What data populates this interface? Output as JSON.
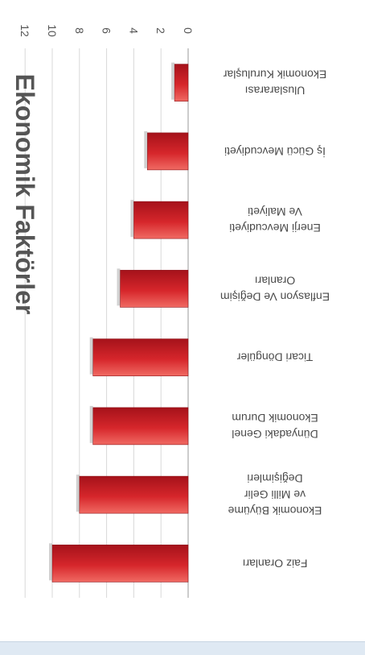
{
  "chart_data": {
    "type": "bar",
    "orientation": "vertical-rotated-180",
    "title": "Ekonomik Faktörler",
    "xlabel": "",
    "ylabel": "",
    "categories": [
      [
        "Faiz Oranları"
      ],
      [
        "Ekonomik Büyüme",
        "ve Milli Gelir",
        "Değişimleri"
      ],
      [
        "Dünyadaki Genel",
        "Ekonomik Durum"
      ],
      [
        "Ticari Döngüler"
      ],
      [
        "Enflasyon Ve Değişim",
        "Oranları"
      ],
      [
        "Enerji Mevcudiyeti",
        "Ve Maliyeti"
      ],
      [
        "İş Gücü Mevcudiyeti"
      ],
      [
        "Uluslararası",
        "Ekonomik Kuruluşlar"
      ]
    ],
    "values": [
      10,
      8,
      7,
      7,
      5,
      4,
      3,
      1
    ],
    "yticks": [
      "0",
      "2",
      "4",
      "6",
      "8",
      "10",
      "12"
    ],
    "ylim": [
      0,
      12
    ],
    "grid": true,
    "bar_color": "#d6262b"
  }
}
